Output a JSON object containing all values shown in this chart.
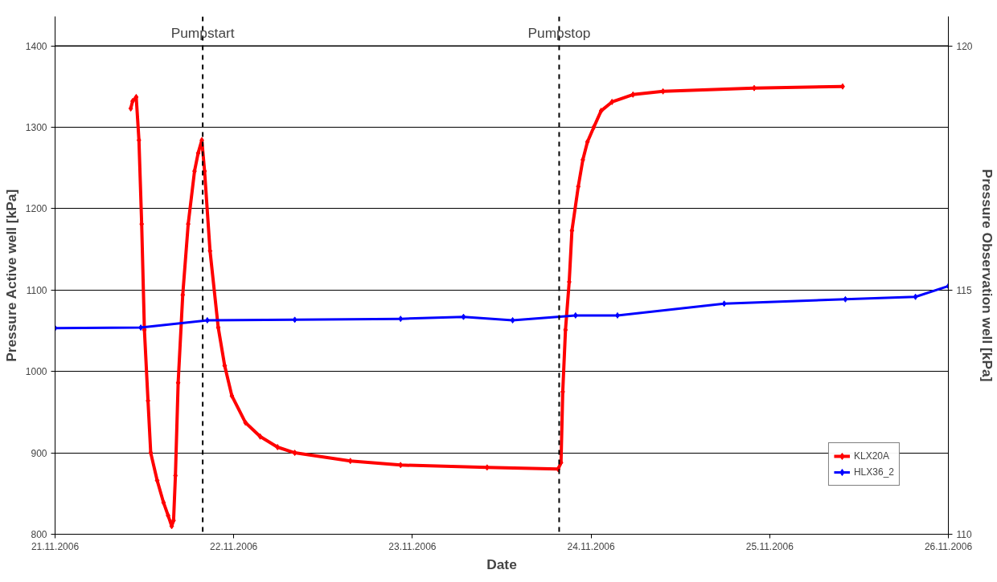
{
  "chart_data": {
    "type": "line",
    "xlabel": "Date",
    "ylabel": "Pressure Active well [kPa]",
    "y2label": "Pressure Observation well [kPa]",
    "xlim": [
      "2006-11-21",
      "2006-11-26"
    ],
    "xticks": [
      {
        "value": "2006-11-21",
        "label": "21.11.2006"
      },
      {
        "value": "2006-11-22",
        "label": "22.11.2006"
      },
      {
        "value": "2006-11-23",
        "label": "23.11.2006"
      },
      {
        "value": "2006-11-24",
        "label": "24.11.2006"
      },
      {
        "value": "2006-11-25",
        "label": "25.11.2006"
      },
      {
        "value": "2006-11-26",
        "label": "26.11.2006"
      }
    ],
    "ylim": [
      800,
      1400
    ],
    "yticks": [
      800,
      900,
      1000,
      1100,
      1200,
      1300,
      1400
    ],
    "y2lim": [
      110,
      120
    ],
    "y2ticks": [
      110,
      115,
      120
    ],
    "grid": "y",
    "legend": "bottom right",
    "marker": "diamond",
    "line_style": "solid",
    "ref_lines": [
      {
        "axis": "x",
        "value": "2006-11-21T19:50",
        "label": "Pumpstart",
        "color": "#000000",
        "line_style": "dashed"
      },
      {
        "axis": "x",
        "value": "2006-11-23T19:43",
        "label": "Pumpstop",
        "color": "#000000",
        "line_style": "dashed"
      }
    ],
    "series": [
      {
        "name": "KLX20A",
        "color": "#ff0000",
        "x": [
          "2006-11-21T10:10",
          "2006-11-21T10:25",
          "2006-11-21T10:54",
          "2006-11-21T11:16",
          "2006-11-21T11:38",
          "2006-11-21T12:00",
          "2006-11-21T12:29",
          "2006-11-21T12:51",
          "2006-11-21T13:43",
          "2006-11-21T14:34",
          "2006-11-21T15:11",
          "2006-11-21T15:40",
          "2006-11-21T15:55",
          "2006-11-21T16:10",
          "2006-11-21T16:32",
          "2006-11-21T17:09",
          "2006-11-21T17:53",
          "2006-11-21T18:44",
          "2006-11-21T19:13",
          "2006-11-21T19:43",
          "2006-11-21T20:05",
          "2006-11-21T20:49",
          "2006-11-21T21:55",
          "2006-11-21T22:47",
          "2006-11-21T23:45",
          "2006-11-22T01:35",
          "2006-11-22T03:33",
          "2006-11-22T05:53",
          "2006-11-22T08:12",
          "2006-11-22T15:40",
          "2006-11-22T22:25",
          "2006-11-23T10:02",
          "2006-11-23T19:35",
          "2006-11-23T19:58",
          "2006-11-23T20:12",
          "2006-11-23T20:34",
          "2006-11-23T21:04",
          "2006-11-23T21:26",
          "2006-11-23T22:17",
          "2006-11-23T22:54",
          "2006-11-23T23:31",
          "2006-11-24T00:22",
          "2006-11-24T01:21",
          "2006-11-24T02:49",
          "2006-11-24T05:38",
          "2006-11-24T09:40",
          "2006-11-24T21:55",
          "2006-11-25T09:48"
        ],
        "values": [
          1323,
          1332,
          1337,
          1284,
          1181,
          1051,
          964,
          900,
          866,
          839,
          823,
          810,
          817,
          872,
          986,
          1094,
          1181,
          1246,
          1268,
          1284,
          1246,
          1148,
          1054,
          1007,
          970,
          937,
          920,
          907,
          900,
          890,
          885,
          882,
          880,
          888,
          975,
          1051,
          1110,
          1173,
          1227,
          1260,
          1282,
          1300,
          1320,
          1331,
          1340,
          1344,
          1348,
          1350
        ]
      },
      {
        "name": "HLX36_2",
        "color": "#0000ff",
        "axis": "y2",
        "x": [
          "2006-11-21T00:00",
          "2006-11-21T11:31",
          "2006-11-21T20:27",
          "2006-11-22T08:12",
          "2006-11-22T22:25",
          "2006-11-23T06:52",
          "2006-11-23T13:28",
          "2006-11-23T21:55",
          "2006-11-24T03:33",
          "2006-11-24T17:53",
          "2006-11-25T10:10",
          "2006-11-25T19:35",
          "2006-11-26T00:00"
        ],
        "values": [
          114.22,
          114.23,
          114.38,
          114.39,
          114.41,
          114.45,
          114.38,
          114.48,
          114.48,
          114.72,
          114.81,
          114.86,
          115.08
        ]
      }
    ]
  }
}
